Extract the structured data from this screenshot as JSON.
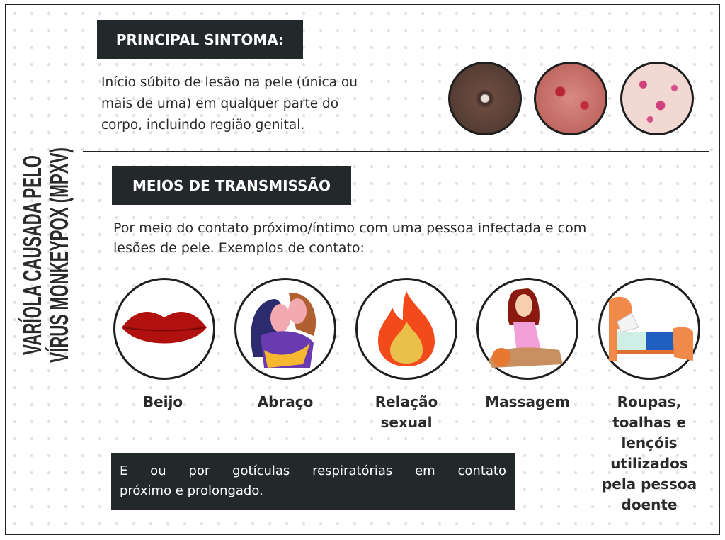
{
  "side_title": {
    "line1": "VARÍOLA CAUSADA PELO",
    "line2": "VÍRUS MONKEYPOX (MPXV)"
  },
  "symptom": {
    "heading": "PRINCIPAL SINTOMA:",
    "lines": [
      "Início súbito de lesão na pele (única ou",
      "mais de uma) em qualquer parte do",
      "corpo, incluindo região genital."
    ]
  },
  "transmission": {
    "heading": "MEIOS DE TRANSMISSÃO",
    "lines": [
      "Por meio do contato próximo/íntimo com uma pessoa infectada e com",
      "lesões de pele. Exemplos de contato:"
    ],
    "examples": [
      {
        "icon": "lips-icon",
        "lines": [
          "Beijo"
        ]
      },
      {
        "icon": "hug-icon",
        "lines": [
          "Abraço"
        ]
      },
      {
        "icon": "fire-icon",
        "lines": [
          "Relação",
          "sexual"
        ]
      },
      {
        "icon": "massage-icon",
        "lines": [
          "Massagem"
        ]
      },
      {
        "icon": "bed-icon",
        "lines": [
          "Roupas,",
          "toalhas e",
          "lençóis",
          "utilizados",
          "pela pessoa",
          "doente"
        ]
      }
    ],
    "footer_lines": [
      "E ou por gotículas respiratórias em contato",
      "próximo e prolongado."
    ]
  },
  "colors": {
    "dark_box": "#23292b",
    "lips": "#b0100e",
    "flame": "#f24a1b",
    "flame_inner": "#e8c04a"
  }
}
